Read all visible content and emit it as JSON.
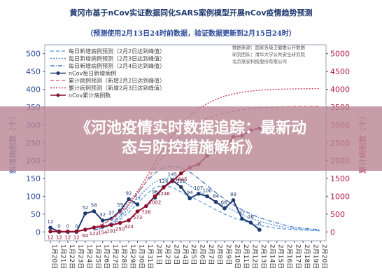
{
  "chart_data": {
    "type": "line",
    "title": "黄冈市基于nCov实证数据同化SARS案例模型开展nCov疫情趋势预测",
    "subtitle": "（预测使用2月13日24时前数据，验证数据更新到2月15日24时）",
    "ylabel_left": "新增病例数（个）",
    "ylabel_right": "累计病例数（个）",
    "ylim_left": [
      -25,
      525
    ],
    "yticks_left": [
      0,
      50,
      100,
      150,
      200,
      250,
      300,
      350,
      400,
      450,
      500
    ],
    "ylim_right": [
      -250,
      5250
    ],
    "yticks_right": [
      0,
      500,
      1000,
      1500,
      2000,
      2500,
      3000,
      3500,
      4000,
      4500,
      5000
    ],
    "source_lines": [
      "数据来源：国家各级卫健委公开数据",
      "研究团队：清华大学公共安全研究院",
      "北京辰安科技股份有限公司"
    ],
    "categories": [
      "1月20日",
      "1月21日",
      "1月22日",
      "1月23日",
      "1月24日",
      "1月25日",
      "1月26日",
      "1月27日",
      "1月28日",
      "1月29日",
      "1月30日",
      "1月31日",
      "2月1日",
      "2月2日",
      "2月3日",
      "2月4日",
      "2月5日",
      "2月6日",
      "2月7日",
      "2月8日",
      "2月9日",
      "2月10日",
      "2月11日",
      "2月12日",
      "2月13日",
      "2月14日",
      "2月15日",
      "2月16日",
      "2月17日",
      "2月18日",
      "2月19日",
      "2月20日"
    ],
    "series": [
      {
        "name": "每日新增病例预测（2月2日达到峰值）",
        "axis": "left",
        "color": "#6aa7e0",
        "dash": "5,3",
        "values": [
          null,
          null,
          null,
          null,
          null,
          5,
          10,
          20,
          35,
          55,
          80,
          105,
          125,
          130,
          125,
          112,
          100,
          88,
          75,
          62,
          50,
          40,
          32,
          25,
          18,
          14,
          10,
          8,
          6,
          5,
          4,
          3
        ]
      },
      {
        "name": "每日新增病例预测（2月3日达到峰值）",
        "axis": "left",
        "color": "#5590d8",
        "dash": "2,2",
        "values": [
          null,
          null,
          null,
          null,
          null,
          5,
          10,
          22,
          40,
          65,
          95,
          120,
          140,
          150,
          152,
          145,
          130,
          115,
          100,
          85,
          72,
          60,
          48,
          38,
          30,
          23,
          17,
          12,
          9,
          7,
          5,
          4
        ]
      },
      {
        "name": "每日新增病例预测（2月4日达到峰值）",
        "axis": "left",
        "color": "#4a7ccc",
        "dash": "6,2,1,2",
        "values": [
          null,
          null,
          null,
          null,
          null,
          5,
          12,
          25,
          45,
          75,
          110,
          140,
          165,
          180,
          185,
          180,
          168,
          150,
          130,
          110,
          92,
          76,
          62,
          50,
          40,
          32,
          25,
          18,
          13,
          10,
          8,
          6
        ]
      },
      {
        "name": "nCov每日新增病例",
        "axis": "left",
        "color": "#1f3a6e",
        "dash": "",
        "marker": "dot",
        "values": [
          12,
          0,
          0,
          0,
          52,
          58,
          32,
          37,
          59,
          92,
          77,
          null,
          96,
          126,
          145,
          126,
          94,
          107,
          100,
          84,
          66,
          89,
          37,
          26,
          6,
          null,
          null,
          null,
          null,
          null,
          null,
          null
        ],
        "labels": [
          "12",
          "0",
          "0",
          "0",
          "52",
          "58",
          "32",
          "37",
          "59",
          "92",
          "77",
          "",
          "96",
          "126",
          "145",
          "126",
          "94",
          "107",
          "100",
          "84",
          "66'",
          "89",
          "37",
          "26",
          "6",
          "",
          "",
          "",
          "",
          "",
          "",
          ""
        ]
      },
      {
        "name": "累计病例预测（新增2月2日达到峰值）",
        "axis": "right",
        "color": "#e07080",
        "dash": "5,3",
        "values": [
          0,
          0,
          0,
          20,
          60,
          120,
          210,
          340,
          520,
          760,
          1060,
          1410,
          1800,
          2150,
          2450,
          2700,
          2900,
          3060,
          3180,
          3270,
          3340,
          3390,
          3430,
          3460,
          3480,
          3495,
          3505,
          3512,
          3517,
          3520,
          3522,
          3523
        ]
      },
      {
        "name": "累计病例预测（新增2月3日达到峰值）",
        "axis": "right",
        "color": "#c84060",
        "dash": "2,2",
        "values": [
          0,
          0,
          0,
          20,
          60,
          125,
          220,
          360,
          560,
          820,
          1140,
          1520,
          1950,
          2350,
          2700,
          3000,
          3250,
          3450,
          3600,
          3720,
          3810,
          3870,
          3920,
          3950,
          3975,
          3990,
          4000,
          4008,
          4013,
          4016,
          4018,
          4019
        ]
      },
      {
        "name": "nCov累计病例数",
        "axis": "right",
        "color": "#8b1030",
        "dash": "",
        "marker": "dot",
        "values": [
          12,
          12,
          12,
          12,
          64,
          122,
          154,
          191,
          250,
          324,
          573,
          726,
          1002,
          1246,
          1422,
          1645,
          1807,
          1897,
          2141,
          2252,
          2332,
          2662,
          2700,
          2850,
          2904,
          2930,
          2960,
          null,
          null,
          null,
          null,
          null
        ],
        "labels": [
          "12",
          "12",
          "12",
          "12",
          "64",
          "122",
          "154",
          "191",
          "250",
          "324",
          "573",
          "726",
          "1002",
          "1246",
          "",
          "1645",
          "",
          "",
          "",
          "",
          "",
          "",
          "",
          "",
          "",
          "",
          "",
          "",
          "",
          "",
          "",
          ""
        ]
      }
    ]
  },
  "overlay": {
    "line1": "《河池疫情实时数据追踪：最新动",
    "line2": "态与防控措施解析》",
    "color": "#b88494"
  }
}
